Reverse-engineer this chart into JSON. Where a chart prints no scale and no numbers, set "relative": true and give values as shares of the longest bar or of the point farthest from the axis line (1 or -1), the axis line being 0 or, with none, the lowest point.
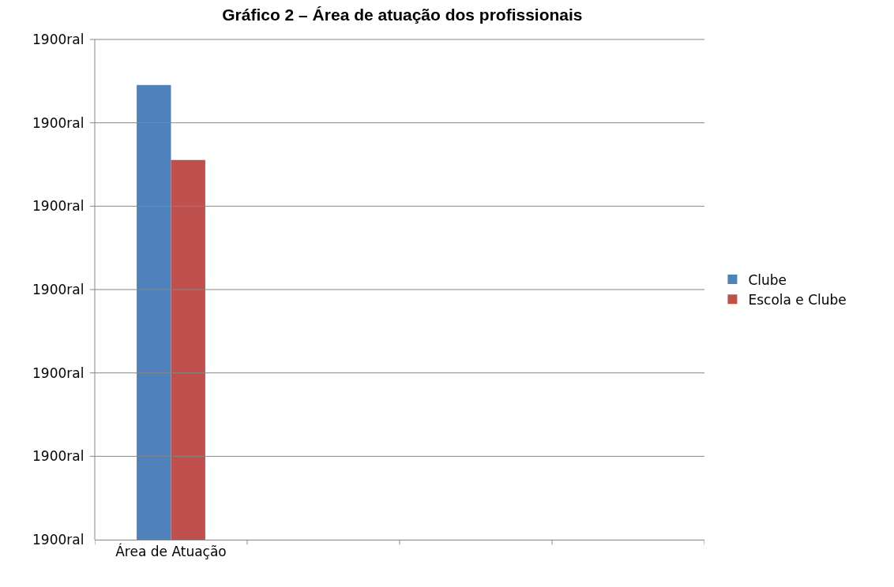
{
  "chart_data": {
    "type": "bar",
    "title": "Gráfico 2 – Área de atuação dos profissionais",
    "categories": [
      "Área de Atuação"
    ],
    "relative": true,
    "series": [
      {
        "name": "Clube",
        "color": "#4f81bd",
        "values": [
          1
        ]
      },
      {
        "name": "Escola e Clube",
        "color": "#c0504d",
        "values": [
          0.835
        ]
      }
    ],
    "annotations": [
      "1900ral",
      "1900ral",
      "1900ral",
      "1900ral",
      "1900ral",
      "1900ral",
      "1900ral"
    ],
    "grid": "y",
    "legend": "right"
  }
}
